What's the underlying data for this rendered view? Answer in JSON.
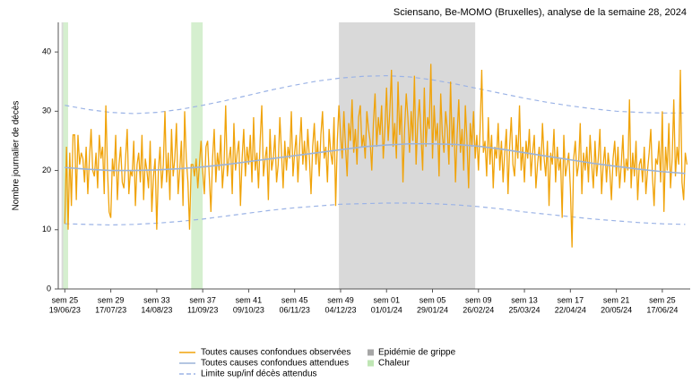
{
  "chart_data": {
    "type": "line",
    "title": "Sciensano, Be-MOMO (Bruxelles), analyse de la semaine 28, 2024",
    "ylabel": "Nombre journalier de décès",
    "ylim": [
      0,
      45
    ],
    "yticks": [
      0,
      10,
      20,
      30,
      40
    ],
    "xlim": [
      -4,
      381
    ],
    "xticks": [
      {
        "value": 0,
        "label": "sem 25",
        "date": "19/06/23"
      },
      {
        "value": 28,
        "label": "sem 29",
        "date": "17/07/23"
      },
      {
        "value": 56,
        "label": "sem 33",
        "date": "14/08/23"
      },
      {
        "value": 84,
        "label": "sem 37",
        "date": "11/09/23"
      },
      {
        "value": 112,
        "label": "sem 41",
        "date": "09/10/23"
      },
      {
        "value": 140,
        "label": "sem 45",
        "date": "06/11/23"
      },
      {
        "value": 168,
        "label": "sem 49",
        "date": "04/12/23"
      },
      {
        "value": 196,
        "label": "sem 01",
        "date": "01/01/24"
      },
      {
        "value": 224,
        "label": "sem 05",
        "date": "29/01/24"
      },
      {
        "value": 252,
        "label": "sem 09",
        "date": "26/02/24"
      },
      {
        "value": 280,
        "label": "sem 13",
        "date": "25/03/24"
      },
      {
        "value": 308,
        "label": "sem 17",
        "date": "22/04/24"
      },
      {
        "value": 336,
        "label": "sem 21",
        "date": "20/05/24"
      },
      {
        "value": 364,
        "label": "sem 25",
        "date": "17/06/24"
      }
    ],
    "regions": [
      {
        "name": "Epidémie de grippe",
        "color": "#d9d9d9",
        "legend_color": "#a6a6a6",
        "spans": [
          [
            -2,
            -1
          ],
          [
            167,
            250
          ]
        ]
      },
      {
        "name": "Chaleur",
        "color": "#d5efcf",
        "legend_color": "#bfe6b4",
        "spans": [
          [
            -1,
            2
          ],
          [
            77,
            84
          ]
        ]
      }
    ],
    "series": [
      {
        "name": "Toutes causes confondues observées",
        "color": "#f0a30a",
        "values": [
          11,
          24,
          10,
          23,
          14,
          26,
          26,
          15,
          26,
          21,
          23,
          22,
          18,
          24,
          16,
          22,
          27,
          20,
          19,
          23,
          17,
          26,
          22,
          24,
          16,
          31,
          20,
          13,
          12,
          22,
          19,
          26,
          15,
          21,
          24,
          18,
          17,
          22,
          27,
          16,
          20,
          19,
          25,
          14,
          21,
          23,
          18,
          26,
          15,
          22,
          20,
          17,
          25,
          13,
          19,
          22,
          10,
          20,
          24,
          17,
          21,
          30,
          18,
          23,
          15,
          27,
          19,
          22,
          28,
          16,
          20,
          25,
          14,
          30,
          22,
          18,
          10,
          21,
          21,
          19,
          22,
          17,
          21,
          25,
          20,
          16,
          24,
          25,
          19,
          13,
          22,
          27,
          18,
          23,
          20,
          26,
          17,
          21,
          31,
          19,
          22,
          24,
          16,
          28,
          20,
          23,
          25,
          14,
          22,
          27,
          19,
          24,
          21,
          26,
          18,
          29,
          20,
          23,
          17,
          25,
          31,
          19,
          22,
          24,
          15,
          27,
          20,
          22,
          26,
          18,
          21,
          29,
          23,
          17,
          25,
          20,
          24,
          22,
          30,
          19,
          23,
          26,
          18,
          24,
          29,
          21,
          25,
          20,
          27,
          22,
          16,
          24,
          28,
          21,
          25,
          19,
          26,
          30,
          22,
          24,
          18,
          27,
          23,
          21,
          29,
          14,
          25,
          31,
          26,
          22,
          30,
          24,
          19,
          28,
          25,
          32,
          23,
          27,
          21,
          29,
          31,
          24,
          26,
          22,
          30,
          27,
          25,
          20,
          28,
          33,
          24,
          29,
          26,
          31,
          22,
          27,
          34,
          25,
          30,
          37,
          24,
          28,
          22,
          35,
          26,
          31,
          18,
          27,
          33,
          29,
          23,
          30,
          25,
          36,
          21,
          28,
          32,
          26,
          20,
          34,
          24,
          29,
          27,
          38,
          22,
          31,
          25,
          28,
          19,
          33,
          26,
          23,
          30,
          27,
          21,
          35,
          24,
          29,
          18,
          26,
          32,
          23,
          27,
          20,
          31,
          25,
          17,
          28,
          24,
          30,
          22,
          26,
          20,
          27,
          37,
          23,
          25,
          19,
          29,
          21,
          26,
          17,
          24,
          22,
          28,
          20,
          25,
          18,
          23,
          27,
          16,
          24,
          29,
          21,
          19,
          26,
          22,
          31,
          20,
          24,
          18,
          25,
          22,
          27,
          19,
          23,
          26,
          17,
          21,
          24,
          20,
          28,
          22,
          19,
          25,
          14,
          23,
          21,
          27,
          18,
          24,
          20,
          22,
          12,
          26,
          19,
          21,
          23,
          17,
          7,
          22,
          25,
          19,
          21,
          28,
          16,
          23,
          20,
          24,
          18,
          26,
          21,
          17,
          25,
          19,
          22,
          27,
          16,
          21,
          24,
          18,
          23,
          20,
          15,
          22,
          25,
          19,
          24,
          17,
          21,
          26,
          18,
          22,
          20,
          32,
          17,
          23,
          19,
          25,
          15,
          21,
          22,
          18,
          24,
          16,
          20,
          23,
          27,
          19,
          14,
          22,
          21,
          25,
          18,
          30,
          13,
          24,
          20,
          28,
          17,
          22,
          32,
          19,
          24,
          21,
          37,
          18,
          15,
          23,
          21
        ]
      },
      {
        "name": "Toutes causes confondues attendues",
        "color": "#9bb3d9",
        "x": [
          0,
          14,
          28,
          42,
          56,
          70,
          84,
          98,
          112,
          126,
          140,
          154,
          168,
          182,
          196,
          210,
          224,
          238,
          252,
          266,
          280,
          294,
          308,
          322,
          336,
          350,
          364,
          378
        ],
        "values": [
          20.5,
          20.2,
          20.0,
          20.0,
          20.1,
          20.3,
          20.6,
          21.0,
          21.5,
          22.0,
          22.5,
          23.0,
          23.5,
          24.0,
          24.3,
          24.5,
          24.5,
          24.4,
          24.1,
          23.6,
          23.0,
          22.4,
          21.8,
          21.2,
          20.7,
          20.2,
          19.8,
          19.5
        ]
      },
      {
        "name": "Limite sup/inf décès attendus",
        "color": "#9bb3e6",
        "x": [
          0,
          14,
          28,
          42,
          56,
          70,
          84,
          98,
          112,
          126,
          140,
          154,
          168,
          182,
          196,
          210,
          224,
          238,
          252,
          266,
          280,
          294,
          308,
          322,
          336,
          350,
          364,
          378
        ],
        "upper": [
          31.0,
          30.3,
          29.8,
          29.6,
          29.8,
          30.3,
          31.0,
          31.8,
          32.7,
          33.6,
          34.4,
          35.1,
          35.6,
          35.9,
          36.0,
          35.8,
          35.3,
          34.6,
          33.8,
          33.0,
          32.2,
          31.5,
          30.9,
          30.4,
          30.0,
          29.8,
          29.7,
          29.7
        ],
        "lower": [
          11.0,
          10.9,
          10.8,
          10.9,
          11.1,
          11.4,
          11.8,
          12.3,
          12.8,
          13.3,
          13.7,
          14.0,
          14.3,
          14.4,
          14.5,
          14.5,
          14.4,
          14.2,
          13.9,
          13.5,
          13.0,
          12.6,
          12.2,
          11.8,
          11.5,
          11.2,
          11.0,
          10.9
        ]
      }
    ]
  }
}
